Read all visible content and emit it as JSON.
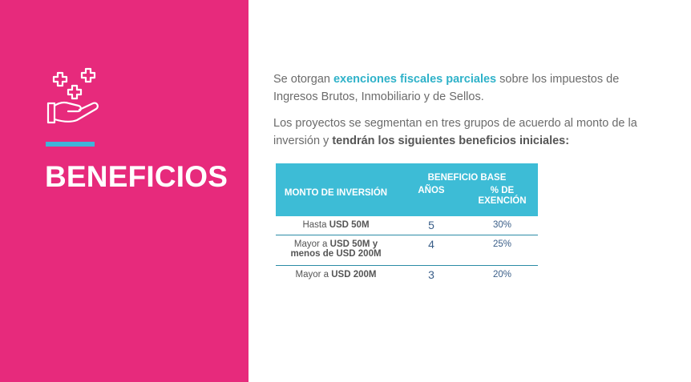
{
  "slide": {
    "title": "BENEFICIOS",
    "icon": "hand-with-plus-signs-icon",
    "colors": {
      "panel": "#e72a7c",
      "accent": "#40b4d9",
      "table_header": "#3dbcd6",
      "highlight": "#2fb2c9"
    }
  },
  "intro": {
    "p1_before": "Se otorgan ",
    "p1_highlight": "exenciones fiscales parciales",
    "p1_after": " sobre los impuestos de Ingresos Brutos, Inmobiliario y de Sellos.",
    "p2_before": "Los proyectos se segmentan en tres grupos de acuerdo al monto de la inversión y ",
    "p2_highlight": "tendrán los siguientes beneficios iniciales:"
  },
  "table": {
    "header": {
      "monto": "MONTO DE INVERSIÓN",
      "base": "BENEFICIO BASE",
      "anos": "AÑOS",
      "pct_line1": "% DE",
      "pct_line2": "EXENCIÓN"
    },
    "rows": [
      {
        "prefix": "Hasta ",
        "bold": "USD 50M",
        "bold2": "",
        "years": "5",
        "pct": "30%"
      },
      {
        "prefix": "Mayor a ",
        "bold": "USD 50M y",
        "bold2": "menos de USD 200M",
        "years": "4",
        "pct": "25%"
      },
      {
        "prefix": "Mayor a ",
        "bold": "USD 200M",
        "bold2": "",
        "years": "3",
        "pct": "20%"
      }
    ]
  }
}
